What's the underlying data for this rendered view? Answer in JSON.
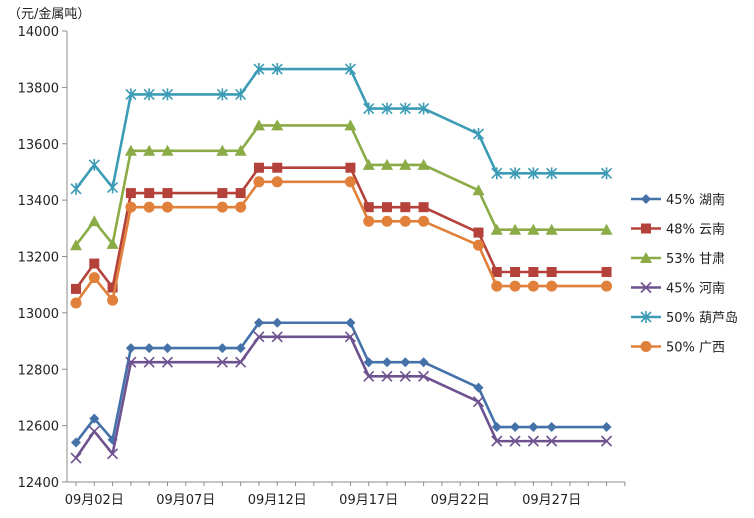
{
  "chart_data": {
    "type": "line",
    "unit_label": "（元/金属吨）",
    "ylim": [
      12400,
      14000
    ],
    "yticks": [
      12400,
      12600,
      12800,
      13000,
      13200,
      13400,
      13600,
      13800,
      14000
    ],
    "x_tick_labels": [
      "09月02日",
      "09月07日",
      "09月12日",
      "09月17日",
      "09月22日",
      "09月27日"
    ],
    "grid": false,
    "legend_position": "right",
    "x": [
      "09-01",
      "09-02",
      "09-03",
      "09-04",
      "09-05",
      "09-06",
      "09-09",
      "09-10",
      "09-11",
      "09-12",
      "09-16",
      "09-17",
      "09-18",
      "09-19",
      "09-20",
      "09-23",
      "09-24",
      "09-25",
      "09-26",
      "09-27",
      "09-30"
    ],
    "series": [
      {
        "name": "45% 湖南",
        "color": "#4472a8",
        "marker": "diamond",
        "values": [
          12540,
          12625,
          12550,
          12875,
          12875,
          12875,
          12875,
          12875,
          12965,
          12965,
          12965,
          12825,
          12825,
          12825,
          12825,
          12735,
          12595,
          12595,
          12595,
          12595,
          12595
        ]
      },
      {
        "name": "48% 云南",
        "color": "#b5423a",
        "marker": "square",
        "values": [
          13085,
          13175,
          13090,
          13425,
          13425,
          13425,
          13425,
          13425,
          13515,
          13515,
          13515,
          13375,
          13375,
          13375,
          13375,
          13285,
          13145,
          13145,
          13145,
          13145,
          13145
        ]
      },
      {
        "name": "53% 甘肃",
        "color": "#8aab46",
        "marker": "triangle",
        "values": [
          13240,
          13325,
          13245,
          13575,
          13575,
          13575,
          13575,
          13575,
          13665,
          13665,
          13665,
          13525,
          13525,
          13525,
          13525,
          13435,
          13295,
          13295,
          13295,
          13295,
          13295
        ]
      },
      {
        "name": "45% 河南",
        "color": "#6e518f",
        "marker": "x",
        "values": [
          12485,
          12580,
          12500,
          12825,
          12825,
          12825,
          12825,
          12825,
          12915,
          12915,
          12915,
          12775,
          12775,
          12775,
          12775,
          12685,
          12545,
          12545,
          12545,
          12545,
          12545
        ]
      },
      {
        "name": "50% 葫芦岛",
        "color": "#3c9bb5",
        "marker": "star",
        "values": [
          13440,
          13525,
          13445,
          13775,
          13775,
          13775,
          13775,
          13775,
          13865,
          13865,
          13865,
          13725,
          13725,
          13725,
          13725,
          13635,
          13495,
          13495,
          13495,
          13495,
          13495
        ]
      },
      {
        "name": "50% 广西",
        "color": "#e0803a",
        "marker": "circle",
        "values": [
          13035,
          13125,
          13045,
          13375,
          13375,
          13375,
          13375,
          13375,
          13465,
          13465,
          13465,
          13325,
          13325,
          13325,
          13325,
          13240,
          13095,
          13095,
          13095,
          13095,
          13095
        ]
      }
    ]
  }
}
